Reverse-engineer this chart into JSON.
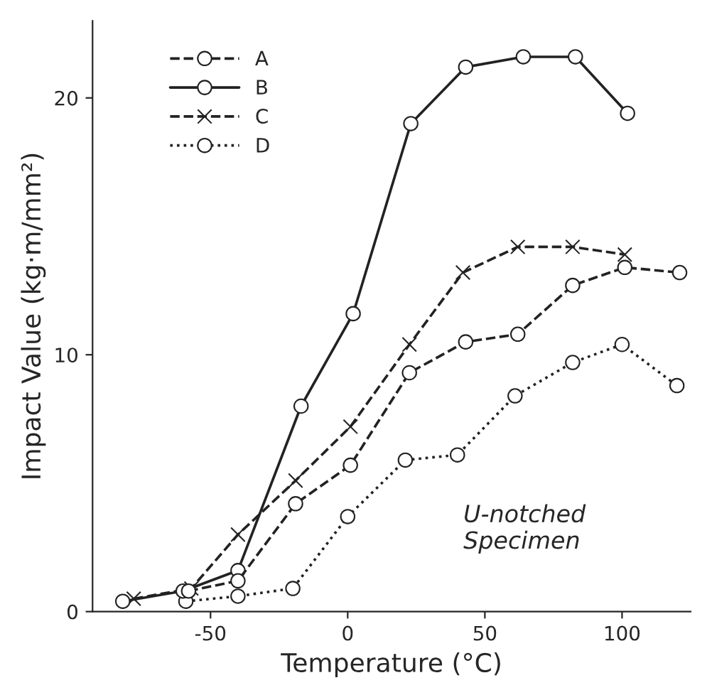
{
  "chart_data": {
    "type": "line",
    "xlabel": "Temperature (°C)",
    "ylabel": "Impact Value (kg·m/mm²)",
    "annotations": [
      "U-notched\nSpecimen"
    ],
    "xlim": [
      -93,
      125
    ],
    "ylim": [
      0,
      23
    ],
    "xticks": [
      -50,
      0,
      50,
      100
    ],
    "yticks": [
      0,
      10,
      20
    ],
    "grid": false,
    "legend": "top left",
    "series": [
      {
        "name": "A",
        "color": "#222222",
        "marker": "circle",
        "line_style": "dashed",
        "x": [
          -58,
          -40,
          -19,
          1,
          22.5,
          43,
          62,
          82,
          101,
          121
        ],
        "values": [
          0.8,
          1.2,
          4.2,
          5.7,
          9.3,
          10.5,
          10.8,
          12.7,
          13.4,
          13.2
        ]
      },
      {
        "name": "B",
        "color": "#222222",
        "marker": "circle",
        "line_style": "solid",
        "x": [
          -82,
          -60,
          -40,
          -17,
          2,
          23,
          43,
          64,
          83,
          102
        ],
        "values": [
          0.4,
          0.8,
          1.6,
          8.0,
          11.6,
          19.0,
          21.2,
          21.6,
          21.6,
          19.4
        ]
      },
      {
        "name": "C",
        "color": "#222222",
        "marker": "cross",
        "line_style": "dashed",
        "x": [
          -78,
          -57,
          -40,
          -19,
          1,
          22.5,
          42,
          62,
          82,
          101
        ],
        "values": [
          0.5,
          0.9,
          3.0,
          5.1,
          7.2,
          10.4,
          13.2,
          14.2,
          14.2,
          13.9
        ]
      },
      {
        "name": "D",
        "color": "#222222",
        "marker": "circle",
        "line_style": "dotted",
        "x": [
          -59,
          -40,
          -20,
          0,
          21,
          40,
          61,
          82,
          100,
          120
        ],
        "values": [
          0.4,
          0.6,
          0.9,
          3.7,
          5.9,
          6.1,
          8.4,
          9.7,
          10.4,
          8.8
        ]
      }
    ]
  }
}
